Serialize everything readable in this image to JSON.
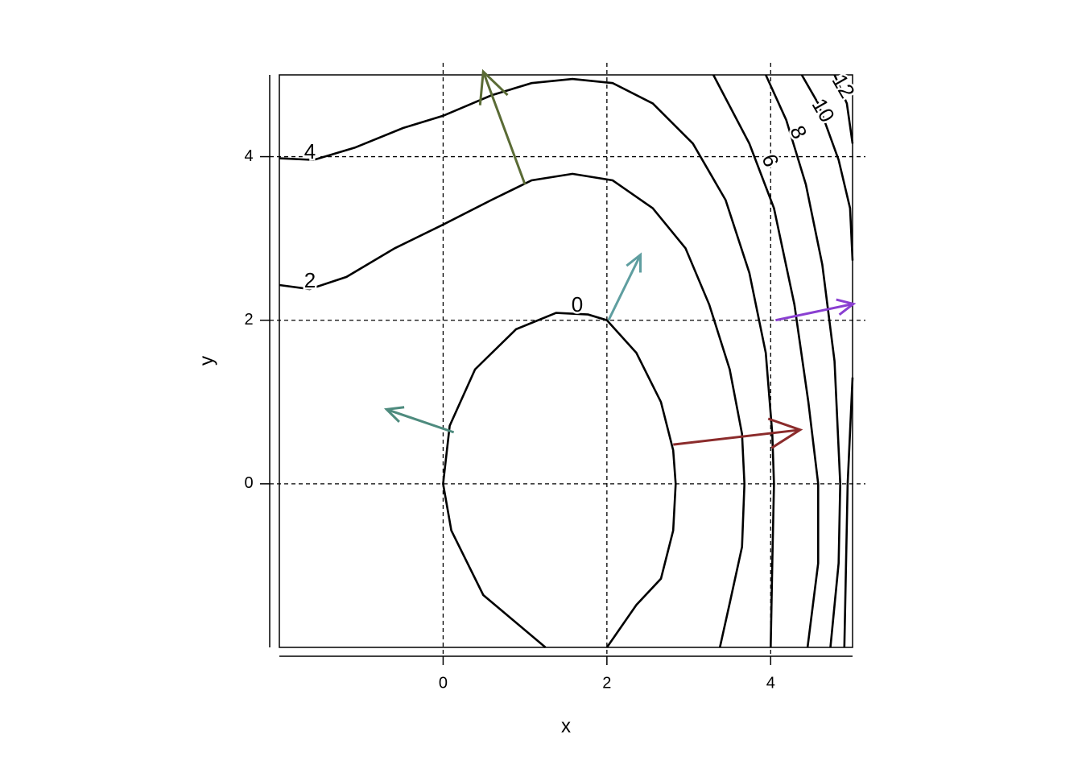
{
  "chart_data": {
    "type": "contour",
    "xlabel": "x",
    "ylabel": "y",
    "xlim": [
      -2,
      5
    ],
    "ylim": [
      -2,
      5
    ],
    "xticks": [
      0,
      2,
      4
    ],
    "yticks": [
      0,
      2,
      4
    ],
    "grid": true,
    "contours": [
      {
        "level": 0,
        "color": "#000000",
        "x": [
          1.25,
          0.49,
          0.1,
          0,
          0.08,
          0.39,
          0.89,
          1.38,
          1.77,
          2,
          2.36,
          2.66,
          2.81,
          2.84,
          2.81,
          2.66,
          2.36,
          2
        ],
        "y": [
          -2,
          -1.36,
          -0.57,
          0,
          0.71,
          1.4,
          1.89,
          2.09,
          2.07,
          2,
          1.6,
          1,
          0.41,
          0,
          -0.57,
          -1.16,
          -1.48,
          -2
        ]
      },
      {
        "level": 2,
        "color": "#000000",
        "x": [
          -2,
          -1.63,
          -1.18,
          -0.59,
          0,
          0.59,
          1.08,
          1.58,
          2.07,
          2.56,
          2.96,
          3.25,
          3.5,
          3.65,
          3.68,
          3.65,
          3.5,
          3.38
        ],
        "y": [
          2.43,
          2.38,
          2.53,
          2.88,
          3.17,
          3.47,
          3.71,
          3.79,
          3.71,
          3.37,
          2.88,
          2.19,
          1.4,
          0.61,
          0,
          -0.77,
          -1.46,
          -2
        ]
      },
      {
        "level": 4,
        "color": "#000000",
        "x": [
          -2,
          -1.58,
          -1.08,
          -0.49,
          0,
          0.59,
          1.08,
          1.58,
          2.07,
          2.56,
          3.05,
          3.45,
          3.74,
          3.94,
          4.02,
          4.04,
          4.02,
          4.0
        ],
        "y": [
          3.98,
          3.96,
          4.11,
          4.35,
          4.5,
          4.75,
          4.9,
          4.95,
          4.9,
          4.65,
          4.16,
          3.47,
          2.58,
          1.6,
          0.61,
          0,
          -0.97,
          -2
        ]
      },
      {
        "level": 6,
        "color": "#000000",
        "x": [
          3.3,
          3.74,
          4.04,
          4.29,
          4.46,
          4.58,
          4.58,
          4.45
        ],
        "y": [
          5,
          4.16,
          3.37,
          2.19,
          1.0,
          0,
          -0.97,
          -2
        ]
      },
      {
        "level": 8,
        "color": "#000000",
        "x": [
          3.94,
          4.19,
          4.43,
          4.63,
          4.78,
          4.85,
          4.83,
          4.73
        ],
        "y": [
          5,
          4.45,
          3.66,
          2.68,
          1.5,
          0,
          -0.97,
          -2
        ]
      },
      {
        "level": 10,
        "color": "#000000",
        "x": [
          4.38,
          4.58,
          4.83,
          4.97,
          5,
          null,
          5,
          4.94,
          4.9
        ],
        "y": [
          5,
          4.65,
          3.96,
          3.37,
          2.73,
          null,
          1.3,
          0,
          -2
        ]
      },
      {
        "level": 12,
        "color": "#000000",
        "x": [
          4.78,
          4.93,
          5
        ],
        "y": [
          5,
          4.65,
          4.16
        ]
      }
    ],
    "arrows": [
      {
        "color": "#5a6b35",
        "x": [
          1.0,
          0.49
        ],
        "y": [
          3.66,
          5.04
        ]
      },
      {
        "color": "#5f9ea0",
        "x": [
          2.02,
          2.41
        ],
        "y": [
          2.0,
          2.8
        ]
      },
      {
        "color": "#4e8b7e",
        "x": [
          0.13,
          -0.69
        ],
        "y": [
          0.63,
          0.91
        ]
      },
      {
        "color": "#8b2b2b",
        "x": [
          2.81,
          4.36
        ],
        "y": [
          0.48,
          0.66
        ]
      },
      {
        "color": "#8a3fd1",
        "x": [
          4.06,
          5.01
        ],
        "y": [
          2.0,
          2.2
        ]
      }
    ]
  }
}
